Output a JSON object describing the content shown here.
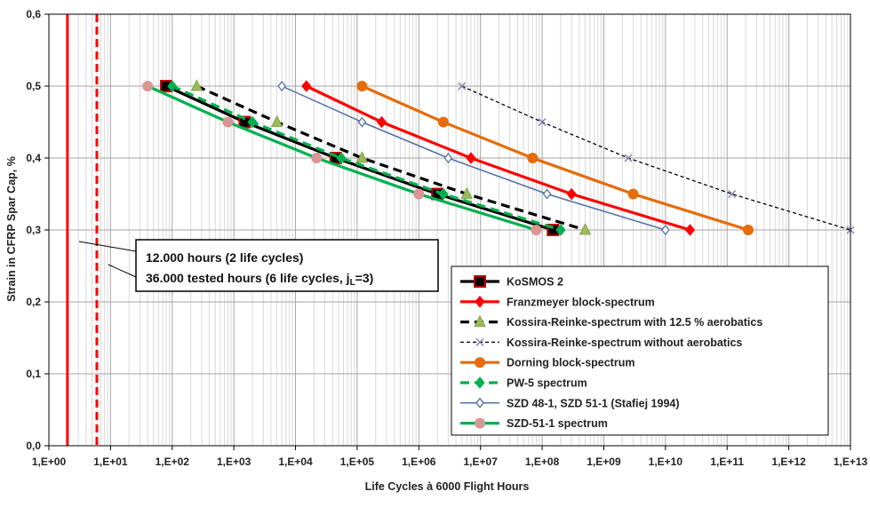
{
  "chart_data": {
    "type": "line",
    "xlabel": "Life Cycles à 6000 Flight Hours",
    "ylabel": "Strain in CFRP Spar Cap, %",
    "xscale": "log",
    "xlim": [
      1,
      10000000000000
    ],
    "ylim": [
      0,
      0.6
    ],
    "grid": true,
    "legend_position": "bottom-right",
    "x_tick_labels": [
      "1,E+00",
      "1,E+01",
      "1,E+02",
      "1,E+03",
      "1,E+04",
      "1,E+05",
      "1,E+06",
      "1,E+07",
      "1,E+08",
      "1,E+09",
      "1,E+10",
      "1,E+11",
      "1,E+12",
      "1,E+13"
    ],
    "y_tick_labels": [
      "0,0",
      "0,1",
      "0,2",
      "0,3",
      "0,4",
      "0,5",
      "0,6"
    ],
    "y_ticks": [
      0,
      0.1,
      0.2,
      0.3,
      0.4,
      0.5,
      0.6
    ],
    "vertical_lines": [
      {
        "x": 2,
        "style": "solid",
        "color": "#ff0000"
      },
      {
        "x": 6,
        "style": "dashed",
        "color": "#ff0000"
      }
    ],
    "annotation_lines": [
      "12.000 hours (2 life cycles)",
      "36.000 tested hours (6 life cycles, j",
      "L",
      "=3)"
    ],
    "series": [
      {
        "name": "KoSMOS 2",
        "color": "#000000",
        "marker": "square",
        "dash": "solid",
        "points": [
          [
            80,
            0.5
          ],
          [
            1500,
            0.45
          ],
          [
            45000,
            0.4
          ],
          [
            2000000,
            0.35
          ],
          [
            150000000,
            0.3
          ]
        ]
      },
      {
        "name": "Franzmeyer block-spectrum",
        "color": "#ff0000",
        "marker": "diamond",
        "dash": "solid",
        "points": [
          [
            15000,
            0.5
          ],
          [
            250000,
            0.45
          ],
          [
            7000000,
            0.4
          ],
          [
            300000000,
            0.35
          ],
          [
            25000000000,
            0.3
          ]
        ]
      },
      {
        "name": "Kossira-Reinke-spectrum with 12.5 % aerobatics",
        "color": "#000000",
        "markerColor": "#9bbb59",
        "marker": "triangle",
        "dash": "dashed",
        "points": [
          [
            250,
            0.5
          ],
          [
            5000,
            0.45
          ],
          [
            120000,
            0.4
          ],
          [
            6000000,
            0.35
          ],
          [
            500000000,
            0.3
          ]
        ]
      },
      {
        "name": "Kossira-Reinke-spectrum without aerobatics",
        "color": "#000000",
        "markerColor": "#8080b0",
        "marker": "x",
        "dash": "fine",
        "points": [
          [
            5000000,
            0.5
          ],
          [
            100000000,
            0.45
          ],
          [
            2500000000,
            0.4
          ],
          [
            120000000000,
            0.35
          ],
          [
            10000000000000,
            0.3
          ]
        ]
      },
      {
        "name": "Dorning block-spectrum",
        "color": "#e46c0a",
        "marker": "circle",
        "dash": "solid",
        "points": [
          [
            120000,
            0.5
          ],
          [
            2500000,
            0.45
          ],
          [
            70000000,
            0.4
          ],
          [
            3000000000,
            0.35
          ],
          [
            220000000000,
            0.3
          ]
        ]
      },
      {
        "name": "PW-5 spectrum",
        "color": "#00b050",
        "marker": "diamond",
        "dash": "dashed",
        "points": [
          [
            100,
            0.5
          ],
          [
            2000,
            0.45
          ],
          [
            55000,
            0.4
          ],
          [
            2500000,
            0.35
          ],
          [
            200000000,
            0.3
          ]
        ]
      },
      {
        "name": "SZD 48-1, SZD 51-1 (Stafiej 1994)",
        "color": "#4f6fa8",
        "marker": "diamond-open",
        "dash": "solid",
        "points": [
          [
            6000,
            0.5
          ],
          [
            120000,
            0.45
          ],
          [
            3000000,
            0.4
          ],
          [
            120000000,
            0.35
          ],
          [
            10000000000,
            0.3
          ]
        ]
      },
      {
        "name": "SZD-51-1 spectrum",
        "color": "#00b050",
        "markerColor": "#d99694",
        "marker": "circle",
        "dash": "solid",
        "points": [
          [
            40,
            0.5
          ],
          [
            800,
            0.45
          ],
          [
            22000,
            0.4
          ],
          [
            1000000,
            0.35
          ],
          [
            80000000,
            0.3
          ]
        ]
      }
    ]
  }
}
